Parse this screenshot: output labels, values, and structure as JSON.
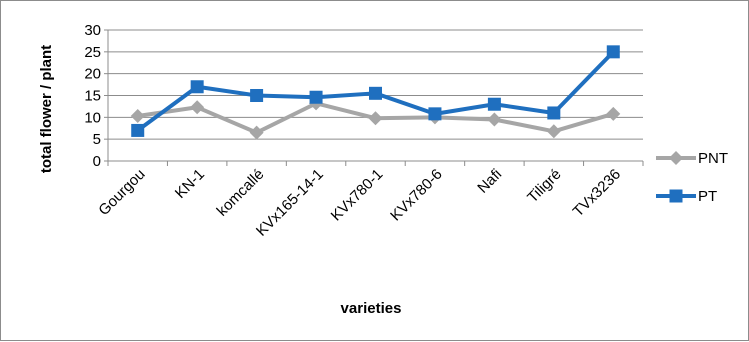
{
  "chart_data": {
    "type": "line",
    "title": "",
    "xlabel": "varieties",
    "ylabel": "total flower / plant",
    "ylim": [
      0,
      30
    ],
    "yticks": [
      0,
      5,
      10,
      15,
      20,
      25,
      30
    ],
    "grid": true,
    "legend_position": "right",
    "categories": [
      "Gourgou",
      "KN-1",
      "komcallé",
      "KVx165-14-1",
      "KVx780-1",
      "KVx780-6",
      "Nafi",
      "Tiligré",
      "TVx3236"
    ],
    "series": [
      {
        "name": "PNT",
        "color": "#a6a6a6",
        "marker": "diamond",
        "values": [
          10.3,
          12.3,
          6.5,
          13.2,
          9.8,
          10.0,
          9.5,
          6.8,
          10.8
        ]
      },
      {
        "name": "PT",
        "color": "#1f6fbf",
        "marker": "square",
        "values": [
          7.0,
          17.0,
          15.0,
          14.6,
          15.5,
          10.8,
          13.0,
          11.0,
          25.0
        ]
      }
    ]
  }
}
